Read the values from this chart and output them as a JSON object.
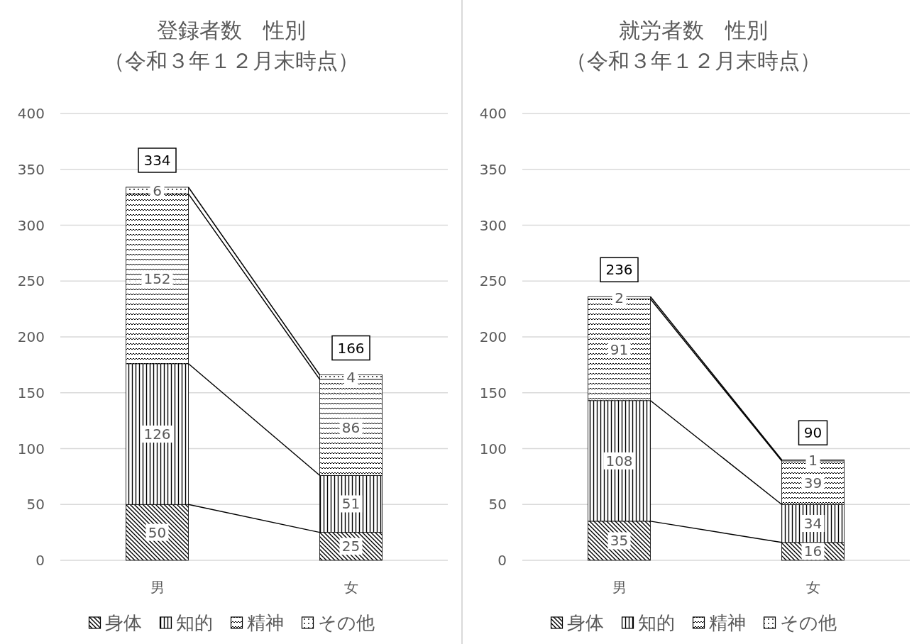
{
  "chart_data": [
    {
      "type": "bar",
      "title": "登録者数　性別",
      "subtitle": "（令和３年１２月末時点）",
      "categories": [
        "男",
        "女"
      ],
      "stacked": true,
      "data_labels": true,
      "totals": [
        "334",
        "166"
      ],
      "grid": "y",
      "legend": "bottom",
      "ylim": [
        0,
        400
      ],
      "yticks": [
        0,
        50,
        100,
        150,
        200,
        250,
        300,
        350,
        400
      ],
      "series": [
        {
          "name": "身体",
          "color": "#000000",
          "values": [
            50,
            25
          ]
        },
        {
          "name": "知的",
          "color": "#000000",
          "values": [
            126,
            51
          ]
        },
        {
          "name": "精神",
          "color": "#000000",
          "values": [
            152,
            86
          ]
        },
        {
          "name": "その他",
          "color": "#000000",
          "values": [
            6,
            4
          ]
        }
      ]
    },
    {
      "type": "bar",
      "title": "就労者数　性別",
      "subtitle": "（令和３年１２月末時点）",
      "categories": [
        "男",
        "女"
      ],
      "stacked": true,
      "data_labels": true,
      "totals": [
        "236",
        "90"
      ],
      "grid": "y",
      "legend": "bottom",
      "ylim": [
        0,
        400
      ],
      "yticks": [
        0,
        50,
        100,
        150,
        200,
        250,
        300,
        350,
        400
      ],
      "series": [
        {
          "name": "身体",
          "color": "#000000",
          "values": [
            35,
            16
          ]
        },
        {
          "name": "知的",
          "color": "#000000",
          "values": [
            108,
            34
          ]
        },
        {
          "name": "精神",
          "color": "#000000",
          "values": [
            91,
            39
          ]
        },
        {
          "name": "その他",
          "color": "#000000",
          "values": [
            2,
            1
          ]
        }
      ]
    }
  ]
}
